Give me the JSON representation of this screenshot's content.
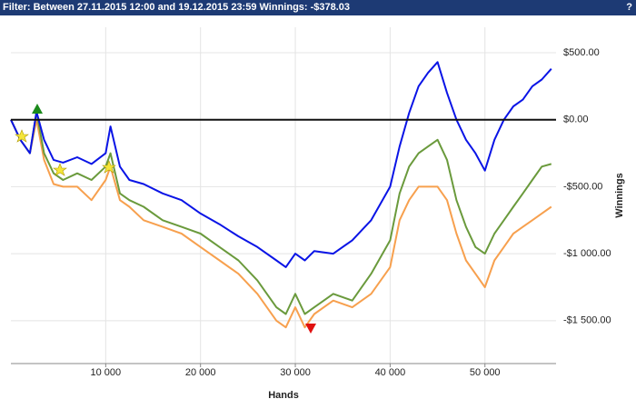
{
  "filter_text": "Filter: Between 27.11.2015 12:00 and 19.12.2015 23:59 Winnings: -$378.03",
  "chart_data": {
    "type": "line",
    "xlabel": "Hands",
    "ylabel": "Winnings",
    "x": [
      0,
      1000,
      2000,
      2700,
      3500,
      4500,
      5500,
      7000,
      8500,
      10000,
      10500,
      11500,
      12500,
      14000,
      16000,
      18000,
      20000,
      22000,
      24000,
      26000,
      28000,
      29000,
      30000,
      31000,
      32000,
      34000,
      36000,
      38000,
      40000,
      41000,
      42000,
      43000,
      44000,
      45000,
      46000,
      47000,
      48000,
      49000,
      50000,
      51000,
      52000,
      53000,
      54000,
      55000,
      56000,
      57000
    ],
    "series": [
      {
        "color": "#f7a04e",
        "values": [
          0,
          -150,
          -250,
          0,
          -300,
          -480,
          -500,
          -500,
          -600,
          -450,
          -350,
          -600,
          -650,
          -750,
          -800,
          -850,
          -950,
          -1050,
          -1150,
          -1300,
          -1500,
          -1550,
          -1400,
          -1550,
          -1450,
          -1350,
          -1400,
          -1300,
          -1100,
          -750,
          -600,
          -500,
          -500,
          -500,
          -600,
          -850,
          -1050,
          -1150,
          -1250,
          -1050,
          -950,
          -850,
          -800,
          -750,
          -700,
          -650
        ]
      },
      {
        "color": "#6a9a3c",
        "values": [
          0,
          -150,
          -250,
          60,
          -250,
          -400,
          -450,
          -400,
          -450,
          -350,
          -250,
          -550,
          -600,
          -650,
          -750,
          -800,
          -850,
          -950,
          -1050,
          -1200,
          -1400,
          -1450,
          -1300,
          -1450,
          -1400,
          -1300,
          -1350,
          -1150,
          -900,
          -550,
          -350,
          -250,
          -200,
          -150,
          -300,
          -600,
          -800,
          -950,
          -1000,
          -850,
          -750,
          -650,
          -550,
          -450,
          -350,
          -330
        ]
      },
      {
        "color": "#0a14e6",
        "values": [
          0,
          -150,
          -250,
          60,
          -150,
          -300,
          -320,
          -280,
          -330,
          -250,
          -50,
          -350,
          -450,
          -480,
          -550,
          -600,
          -700,
          -780,
          -870,
          -950,
          -1050,
          -1100,
          -1000,
          -1050,
          -980,
          -1000,
          -900,
          -750,
          -500,
          -200,
          50,
          250,
          350,
          430,
          200,
          0,
          -150,
          -250,
          -380,
          -150,
          0,
          100,
          150,
          250,
          300,
          380
        ]
      }
    ],
    "xlim": [
      0,
      57500
    ],
    "ylim": [
      -1820,
      690
    ],
    "xticks": [
      {
        "value": 10000,
        "label": "10 000"
      },
      {
        "value": 20000,
        "label": "20 000"
      },
      {
        "value": 30000,
        "label": "30 000"
      },
      {
        "value": 40000,
        "label": "40 000"
      },
      {
        "value": 50000,
        "label": "50 000"
      }
    ],
    "yticks": [
      {
        "value": 500,
        "label": "$500.00"
      },
      {
        "value": 0,
        "label": "$0.00"
      },
      {
        "value": -500,
        "label": "-$500.00"
      },
      {
        "value": -1000,
        "label": "-$1 000.00"
      },
      {
        "value": -1500,
        "label": "-$1 500.00"
      }
    ],
    "grid": true,
    "zero_line": true
  }
}
